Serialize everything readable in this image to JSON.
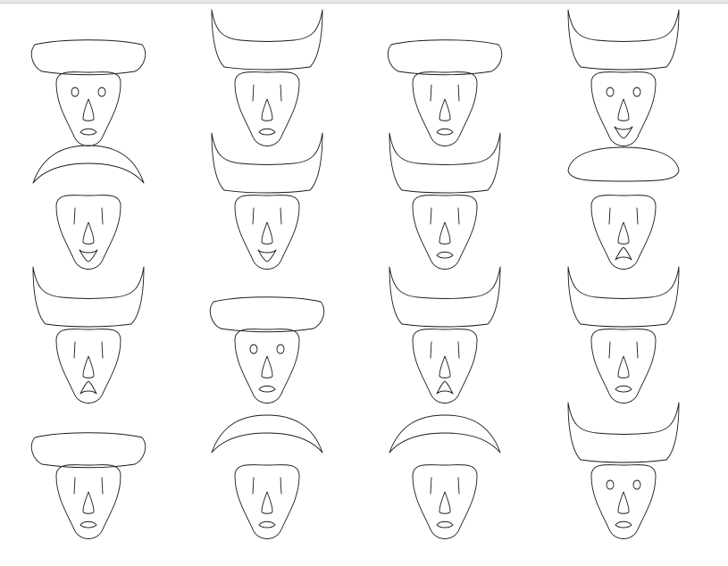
{
  "colors": {
    "stroke": "#1a1a1a",
    "background": "#ffffff"
  },
  "chart_data": {
    "type": "chernoff-faces",
    "rows": 4,
    "columns": 4,
    "faces": [
      {
        "hat": "flat",
        "eyes": "oval",
        "mouth": "lens"
      },
      {
        "hat": "horned",
        "eyes": "line",
        "mouth": "lens"
      },
      {
        "hat": "flat",
        "eyes": "line",
        "mouth": "lens"
      },
      {
        "hat": "horned",
        "eyes": "oval",
        "mouth": "smile"
      },
      {
        "hat": "dome",
        "eyes": "line",
        "mouth": "smile"
      },
      {
        "hat": "horned",
        "eyes": "line",
        "mouth": "smile"
      },
      {
        "hat": "horned",
        "eyes": "line",
        "mouth": "lens"
      },
      {
        "hat": "round",
        "eyes": "line",
        "mouth": "frown"
      },
      {
        "hat": "horned",
        "eyes": "line",
        "mouth": "frown"
      },
      {
        "hat": "flat",
        "eyes": "oval",
        "mouth": "lens"
      },
      {
        "hat": "horned",
        "eyes": "line",
        "mouth": "frown"
      },
      {
        "hat": "horned",
        "eyes": "line",
        "mouth": "lens"
      },
      {
        "hat": "flat",
        "eyes": "line",
        "mouth": "lens"
      },
      {
        "hat": "dome",
        "eyes": "line",
        "mouth": "lens"
      },
      {
        "hat": "dome",
        "eyes": "line",
        "mouth": "lens"
      },
      {
        "hat": "horned",
        "eyes": "oval",
        "mouth": "lens"
      }
    ]
  }
}
